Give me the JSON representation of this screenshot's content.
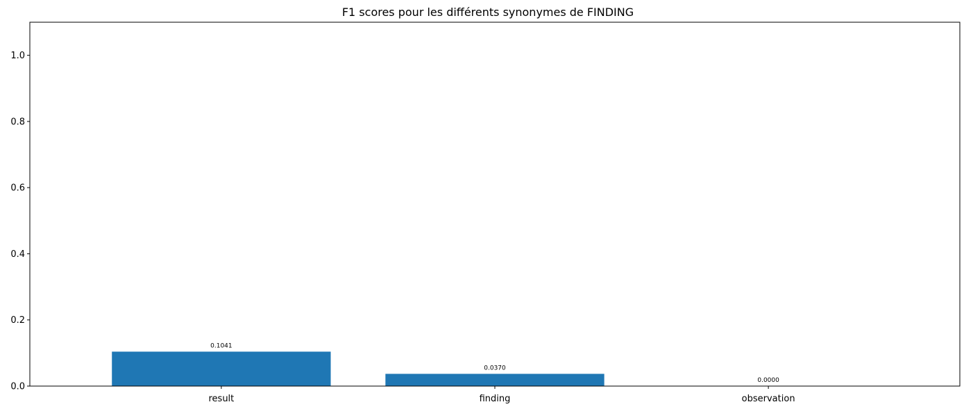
{
  "chart_data": {
    "type": "bar",
    "title": "F1 scores pour les différents synonymes de FINDING",
    "xlabel": "",
    "ylabel": "",
    "categories": [
      "result",
      "finding",
      "observation"
    ],
    "values": [
      0.1041,
      0.037,
      0.0
    ],
    "data_labels": [
      "0.1041",
      "0.0370",
      "0.0000"
    ],
    "ylim": [
      0,
      1.1
    ],
    "yticks": [
      0.0,
      0.2,
      0.4,
      0.6,
      0.8,
      1.0
    ],
    "ytick_labels": [
      "0.0",
      "0.2",
      "0.4",
      "0.6",
      "0.8",
      "1.0"
    ],
    "bar_color": "#1f77b4",
    "grid": false,
    "legend": "none"
  }
}
